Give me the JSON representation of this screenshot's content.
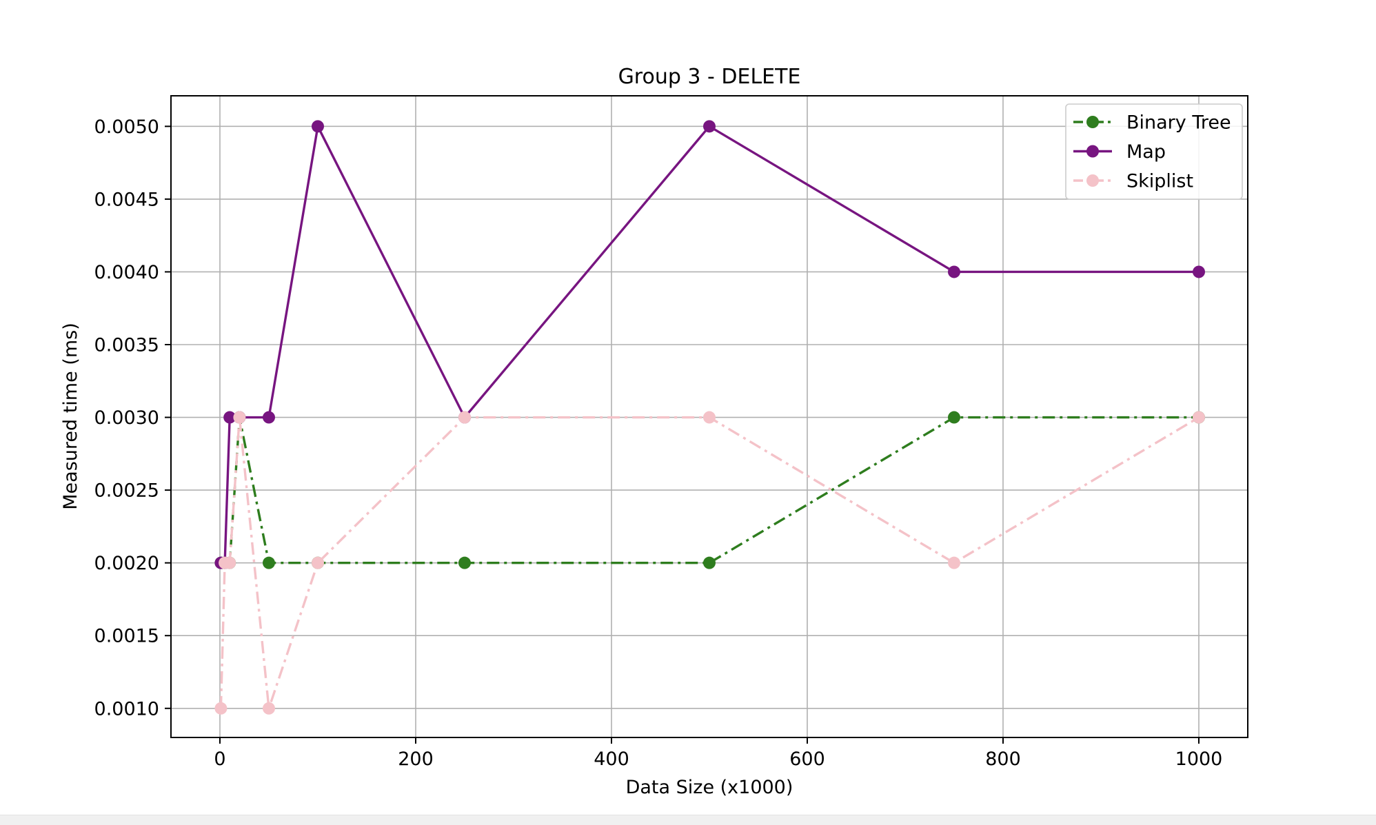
{
  "chart_data": {
    "type": "line",
    "title": "Group 3 - DELETE",
    "xlabel": "Data Size (x1000)",
    "ylabel": "Measured time (ms)",
    "xlim": [
      -50,
      1050
    ],
    "ylim": [
      0.0008,
      0.00521
    ],
    "xticks": [
      0,
      200,
      400,
      600,
      800,
      1000
    ],
    "xtick_labels": [
      "0",
      "200",
      "400",
      "600",
      "800",
      "1000"
    ],
    "yticks": [
      0.001,
      0.0015,
      0.002,
      0.0025,
      0.003,
      0.0035,
      0.004,
      0.0045,
      0.005
    ],
    "ytick_labels": [
      "0.0010",
      "0.0015",
      "0.0020",
      "0.0025",
      "0.0030",
      "0.0035",
      "0.0040",
      "0.0045",
      "0.0050"
    ],
    "grid": true,
    "legend_position": "top-right",
    "x": [
      1,
      5,
      10,
      20,
      50,
      100,
      250,
      500,
      750,
      1000
    ],
    "series": [
      {
        "name": "Binary Tree",
        "color": "#2e7d1e",
        "linestyle": "dashdot",
        "values": [
          0.002,
          0.002,
          0.002,
          0.003,
          0.002,
          0.002,
          0.002,
          0.002,
          0.003,
          0.003
        ]
      },
      {
        "name": "Map",
        "color": "#771580",
        "linestyle": "solid",
        "values": [
          0.002,
          0.002,
          0.003,
          0.003,
          0.003,
          0.005,
          0.003,
          0.005,
          0.004,
          0.004
        ]
      },
      {
        "name": "Skiplist",
        "color": "#f4c2c8",
        "linestyle": "dashdot",
        "values": [
          0.001,
          0.002,
          0.002,
          0.003,
          0.001,
          0.002,
          0.003,
          0.003,
          0.002,
          0.003
        ]
      }
    ]
  }
}
